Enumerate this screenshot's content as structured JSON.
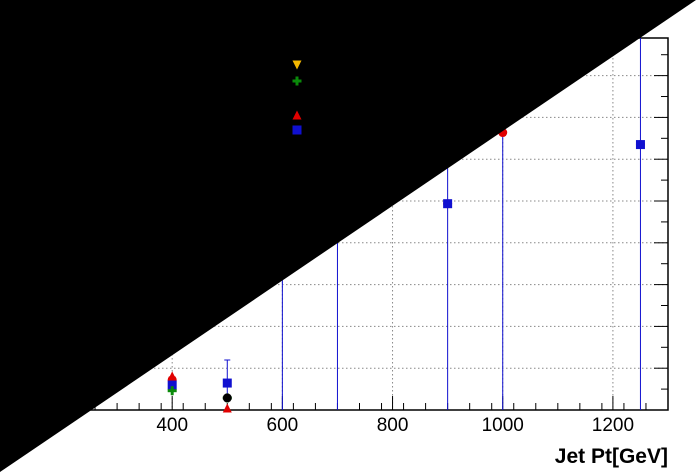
{
  "chart_data": {
    "type": "scatter",
    "xlabel": "Jet Pt[GeV]",
    "xlim": [
      200,
      1300
    ],
    "x_ticks": [
      400,
      600,
      800,
      1000,
      1200
    ],
    "grid": true,
    "legend_placement": "top-center",
    "occlusion": "black triangle covering upper-left half of image",
    "series": [
      {
        "marker": "circle",
        "color": "#e00000",
        "points": [
          {
            "x": 400,
            "y": 0.07
          },
          {
            "x": 900,
            "y": 0.508
          },
          {
            "x": 1000,
            "y": 0.685
          },
          {
            "x": 1250,
            "y": 0.655
          }
        ]
      },
      {
        "marker": "square",
        "color": "#1010d0",
        "points": [
          {
            "x": 400,
            "y": 0.057
          },
          {
            "x": 500,
            "y": 0.062
          },
          {
            "x": 900,
            "y": 0.508
          },
          {
            "x": 1250,
            "y": 0.655
          }
        ]
      },
      {
        "marker": "triangle-up",
        "color": "#e00000",
        "points": [
          {
            "x": 400,
            "y": 0.08
          },
          {
            "x": 500,
            "y": 0.0
          }
        ]
      },
      {
        "marker": "cross",
        "color": "#0a8a0a",
        "points": [
          {
            "x": 400,
            "y": 0.043
          },
          {
            "x": 500,
            "y": 0.025
          }
        ]
      },
      {
        "marker": "triangle-down",
        "color": "#f5b800",
        "points": []
      },
      {
        "marker": "circle",
        "color": "#000000",
        "points": [
          {
            "x": 500,
            "y": 0.025
          }
        ]
      }
    ],
    "error_bars_x": [
      600,
      700,
      900,
      1000,
      1250
    ],
    "legend_markers": [
      {
        "marker": "triangle-down",
        "color": "#f5b800"
      },
      {
        "marker": "cross",
        "color": "#0a8a0a"
      },
      {
        "marker": "triangle-up",
        "color": "#e00000"
      },
      {
        "marker": "square",
        "color": "#1010d0"
      }
    ]
  }
}
